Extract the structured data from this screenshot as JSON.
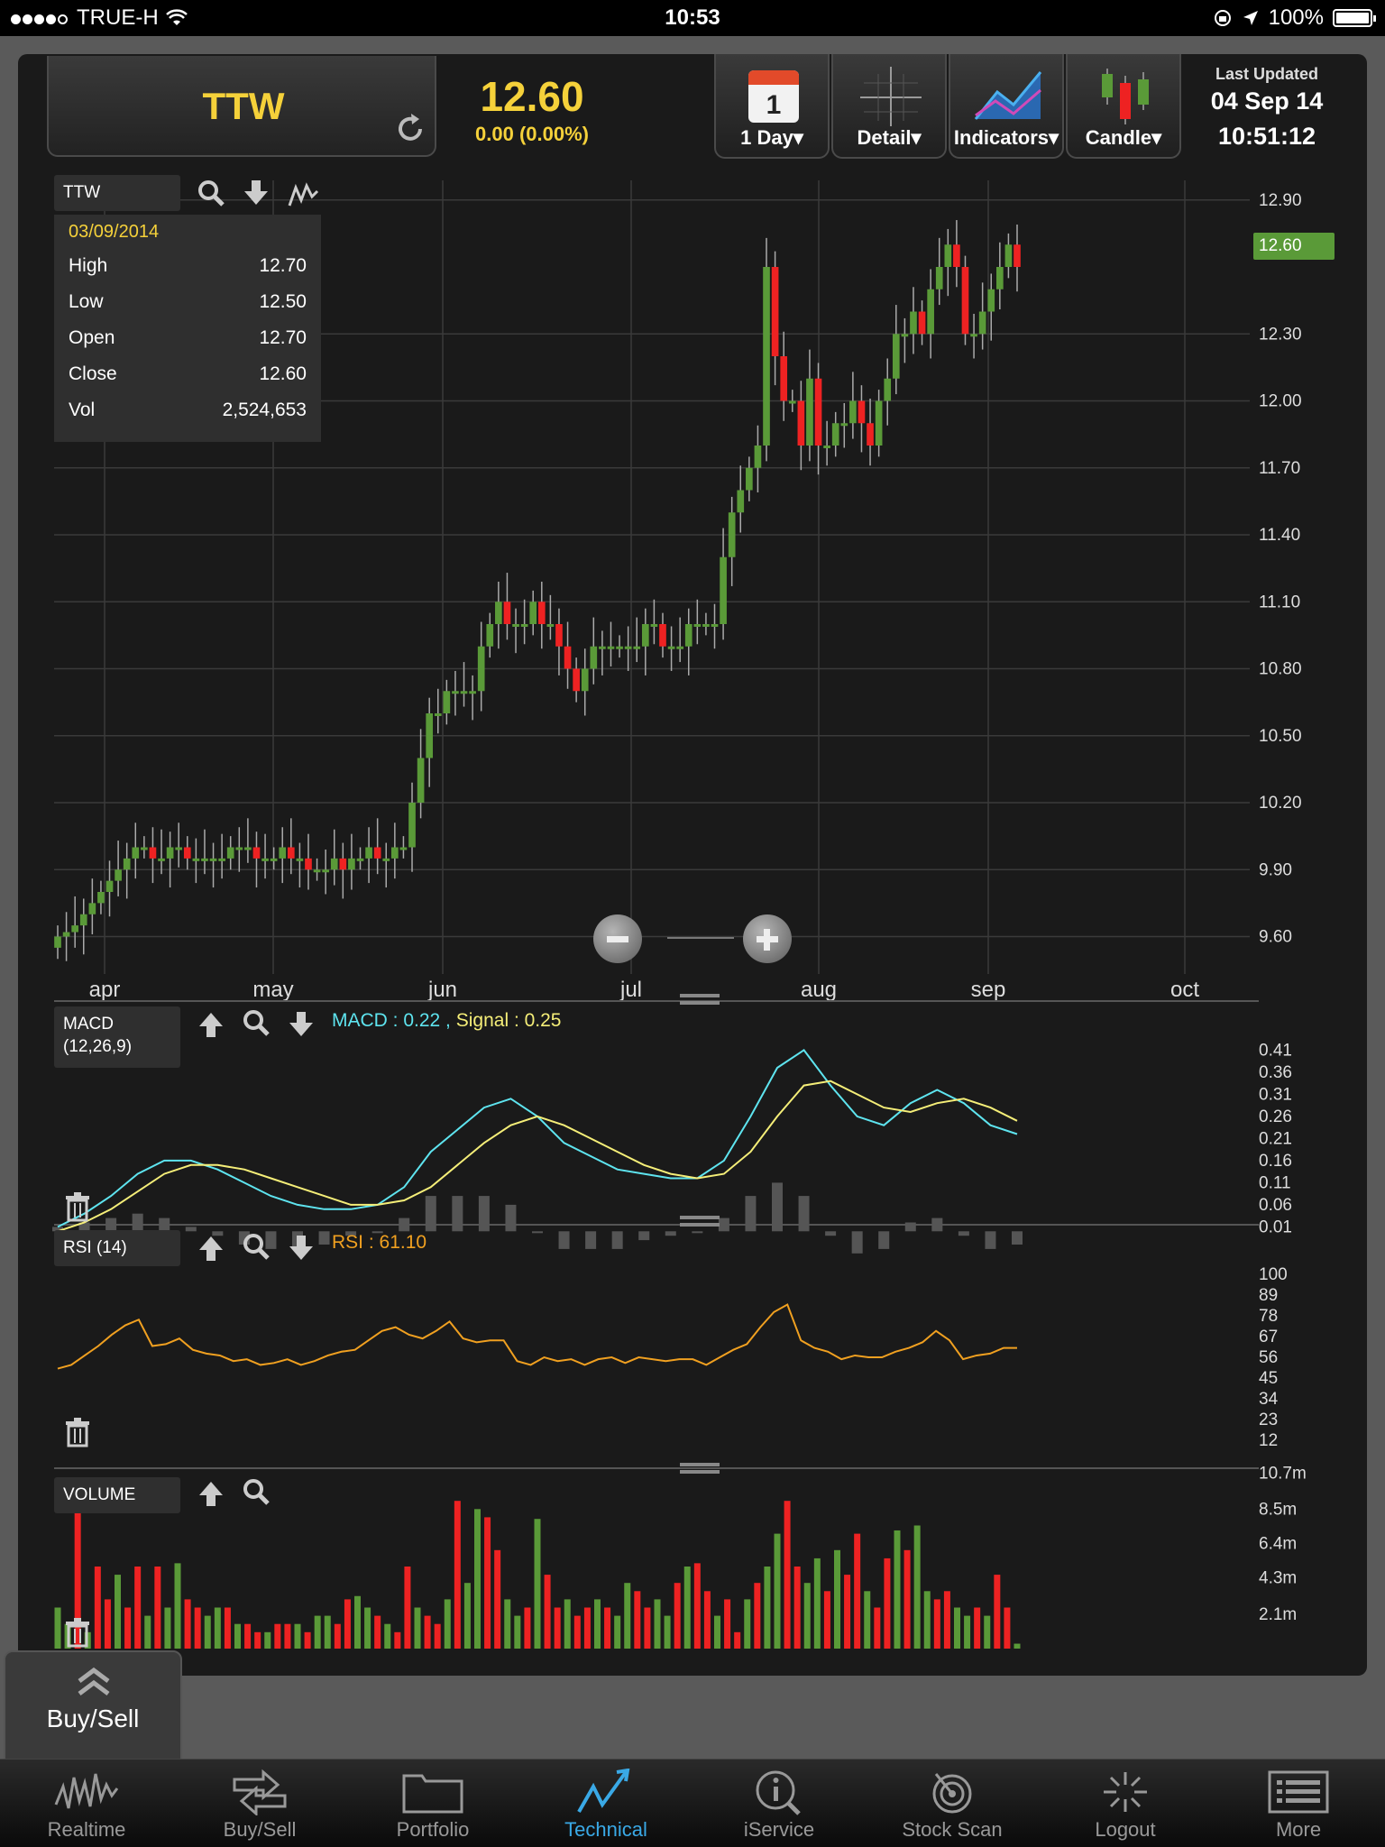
{
  "status_bar": {
    "carrier": "TRUE-H",
    "time": "10:53",
    "battery": "100%"
  },
  "header": {
    "symbol": "TTW",
    "price": "12.60",
    "change": "0.00 (0.00%)",
    "tools": [
      {
        "label": "1 Day",
        "icon": "calendar-icon",
        "calendar_day": "1"
      },
      {
        "label": "Detail",
        "icon": "crosshair-icon"
      },
      {
        "label": "Indicators",
        "icon": "indicators-icon"
      },
      {
        "label": "Candle",
        "icon": "candle-icon"
      }
    ],
    "last_updated_title": "Last Updated",
    "last_updated_date": "04 Sep 14",
    "last_updated_time": "10:51:12"
  },
  "main_chart": {
    "legend": "TTW",
    "ohlc": {
      "date": "03/09/2014",
      "rows": [
        {
          "label": "High",
          "value": "12.70"
        },
        {
          "label": "Low",
          "value": "12.50"
        },
        {
          "label": "Open",
          "value": "12.70"
        },
        {
          "label": "Close",
          "value": "12.60"
        },
        {
          "label": "Vol",
          "value": "2,524,653"
        }
      ]
    },
    "last_price_tag": "12.60"
  },
  "macd_panel": {
    "legend_line1": "MACD",
    "legend_line2": "(12,26,9)",
    "macd_text": "MACD : 0.22",
    "signal_text": "Signal : 0.25",
    "separator": " , "
  },
  "rsi_panel": {
    "legend": "RSI (14)",
    "rsi_text": "RSI : 61.10"
  },
  "volume_panel": {
    "legend": "VOLUME"
  },
  "buysell_tab": {
    "label": "Buy/Sell"
  },
  "tab_bar": [
    {
      "label": "Realtime",
      "icon": "realtime-icon"
    },
    {
      "label": "Buy/Sell",
      "icon": "buy-sell-icon"
    },
    {
      "label": "Portfolio",
      "icon": "portfolio-icon"
    },
    {
      "label": "Technical",
      "icon": "technical-icon",
      "active": true
    },
    {
      "label": "iService",
      "icon": "iservice-icon"
    },
    {
      "label": "Stock Scan",
      "icon": "stock-scan-icon"
    },
    {
      "label": "Logout",
      "icon": "logout-icon"
    },
    {
      "label": "More",
      "icon": "more-icon"
    }
  ],
  "colors": {
    "up": "#5a9a38",
    "down": "#ee2222",
    "macd": "#5ee4ef",
    "signal": "#f5ee78",
    "rsi": "#f0a020",
    "accent": "#f5d13a",
    "active_tab": "#3aa9e6"
  },
  "chart_data": [
    {
      "type": "candlestick",
      "title": "TTW",
      "x_ticks": [
        "apr",
        "may",
        "jun",
        "jul",
        "aug",
        "sep",
        "oct"
      ],
      "y_ticks": [
        "12.90",
        "12.30",
        "12.00",
        "11.70",
        "11.40",
        "11.10",
        "10.80",
        "10.50",
        "10.20",
        "9.90",
        "9.60"
      ],
      "ylim": [
        9.4,
        12.9
      ],
      "close_series": [
        9.6,
        9.62,
        9.65,
        9.7,
        9.75,
        9.8,
        9.85,
        9.9,
        9.95,
        10.0,
        10.0,
        9.95,
        9.95,
        10.0,
        10.0,
        9.95,
        9.95,
        9.95,
        9.95,
        9.95,
        10.0,
        10.0,
        10.0,
        9.95,
        9.95,
        9.95,
        10.0,
        9.95,
        9.95,
        9.9,
        9.9,
        9.9,
        9.95,
        9.9,
        9.95,
        9.95,
        10.0,
        9.95,
        9.95,
        10.0,
        10.0,
        10.2,
        10.4,
        10.6,
        10.6,
        10.7,
        10.7,
        10.7,
        10.7,
        10.9,
        11.0,
        11.1,
        11.0,
        11.0,
        11.0,
        11.1,
        11.0,
        11.0,
        10.9,
        10.8,
        10.7,
        10.8,
        10.9,
        10.9,
        10.9,
        10.9,
        10.9,
        10.9,
        11.0,
        11.0,
        10.9,
        10.9,
        10.9,
        11.0,
        11.0,
        11.0,
        11.0,
        11.3,
        11.5,
        11.6,
        11.7,
        11.8,
        12.6,
        12.2,
        12.0,
        12.0,
        11.8,
        12.1,
        11.8,
        11.8,
        11.9,
        11.9,
        12.0,
        11.9,
        11.8,
        12.0,
        12.1,
        12.3,
        12.3,
        12.4,
        12.3,
        12.5,
        12.6,
        12.7,
        12.6,
        12.3,
        12.3,
        12.4,
        12.5,
        12.6,
        12.7,
        12.6
      ],
      "last_ohlc": {
        "date": "03/09/2014",
        "open": 12.7,
        "high": 12.7,
        "low": 12.5,
        "close": 12.6,
        "volume": 2524653
      }
    },
    {
      "type": "line",
      "title": "MACD (12,26,9)",
      "y_ticks": [
        "0.41",
        "0.36",
        "0.31",
        "0.26",
        "0.21",
        "0.16",
        "0.11",
        "0.06",
        "0.01"
      ],
      "ylim": [
        -0.03,
        0.41
      ],
      "series": [
        {
          "name": "MACD",
          "current": 0.22,
          "values": [
            0.01,
            0.04,
            0.08,
            0.13,
            0.16,
            0.16,
            0.14,
            0.11,
            0.08,
            0.06,
            0.05,
            0.05,
            0.06,
            0.1,
            0.18,
            0.23,
            0.28,
            0.3,
            0.26,
            0.2,
            0.17,
            0.14,
            0.13,
            0.12,
            0.12,
            0.16,
            0.26,
            0.37,
            0.41,
            0.33,
            0.26,
            0.24,
            0.29,
            0.32,
            0.29,
            0.24,
            0.22
          ]
        },
        {
          "name": "Signal",
          "current": 0.25,
          "values": [
            0.0,
            0.02,
            0.05,
            0.09,
            0.13,
            0.15,
            0.15,
            0.14,
            0.12,
            0.1,
            0.08,
            0.06,
            0.06,
            0.07,
            0.1,
            0.15,
            0.2,
            0.24,
            0.26,
            0.24,
            0.21,
            0.18,
            0.15,
            0.13,
            0.12,
            0.13,
            0.18,
            0.26,
            0.33,
            0.34,
            0.31,
            0.28,
            0.27,
            0.29,
            0.3,
            0.28,
            0.25
          ]
        }
      ],
      "histogram": [
        0.01,
        0.02,
        0.03,
        0.04,
        0.03,
        0.01,
        -0.01,
        -0.03,
        -0.04,
        -0.04,
        -0.03,
        -0.01,
        0.0,
        0.03,
        0.08,
        0.08,
        0.08,
        0.06,
        0.0,
        -0.04,
        -0.04,
        -0.04,
        -0.02,
        -0.01,
        0.0,
        0.03,
        0.08,
        0.11,
        0.08,
        -0.01,
        -0.05,
        -0.04,
        0.02,
        0.03,
        -0.01,
        -0.04,
        -0.03
      ]
    },
    {
      "type": "line",
      "title": "RSI (14)",
      "y_ticks": [
        "100",
        "89",
        "78",
        "67",
        "56",
        "45",
        "34",
        "23",
        "12"
      ],
      "ylim": [
        1,
        100
      ],
      "series": [
        {
          "name": "RSI",
          "current": 61.1,
          "values": [
            50,
            52,
            57,
            62,
            68,
            73,
            76,
            62,
            63,
            66,
            60,
            58,
            57,
            54,
            55,
            52,
            53,
            55,
            52,
            54,
            57,
            59,
            60,
            65,
            70,
            72,
            68,
            66,
            70,
            75,
            66,
            64,
            65,
            65,
            54,
            52,
            56,
            54,
            55,
            52,
            55,
            56,
            53,
            56,
            55,
            54,
            55,
            55,
            52,
            56,
            60,
            63,
            72,
            80,
            84,
            65,
            61,
            59,
            55,
            57,
            56,
            56,
            59,
            61,
            64,
            70,
            65,
            55,
            57,
            58,
            61,
            61
          ]
        }
      ]
    },
    {
      "type": "bar",
      "title": "VOLUME",
      "y_ticks": [
        "10.7m",
        "8.5m",
        "6.4m",
        "4.3m",
        "2.1m"
      ],
      "ylim": [
        0,
        10.7
      ],
      "values": [
        2.5,
        1.5,
        9.5,
        1.0,
        5.0,
        3.0,
        4.5,
        2.5,
        5.0,
        2.0,
        5.0,
        2.5,
        5.2,
        3.0,
        2.5,
        2.0,
        2.5,
        2.5,
        1.5,
        1.5,
        1.0,
        1.0,
        1.5,
        1.5,
        1.5,
        1.0,
        2.0,
        2.0,
        1.5,
        3.0,
        3.2,
        2.5,
        2.0,
        1.5,
        1.0,
        5.0,
        2.5,
        2.0,
        1.5,
        3.0,
        9.0,
        4.0,
        8.5,
        8.0,
        6.0,
        3.0,
        2.0,
        2.5,
        7.9,
        4.5,
        2.5,
        3.0,
        2.0,
        2.5,
        3.0,
        2.5,
        2.0,
        4.0,
        3.5,
        2.5,
        3.0,
        2.0,
        4.0,
        5.0,
        5.2,
        3.5,
        2.0,
        3.0,
        1.0,
        3.0,
        4.0,
        5.0,
        7.0,
        9.0,
        5.0,
        4.0,
        5.5,
        3.5,
        6.0,
        4.5,
        7.0,
        3.5,
        2.5,
        5.5,
        7.2,
        6.0,
        7.5,
        3.5,
        3.0,
        3.5,
        2.5,
        2.0,
        2.5,
        2.0,
        4.5,
        2.5,
        0.3
      ],
      "colors_pattern": "alternating up/down by candle direction"
    }
  ]
}
